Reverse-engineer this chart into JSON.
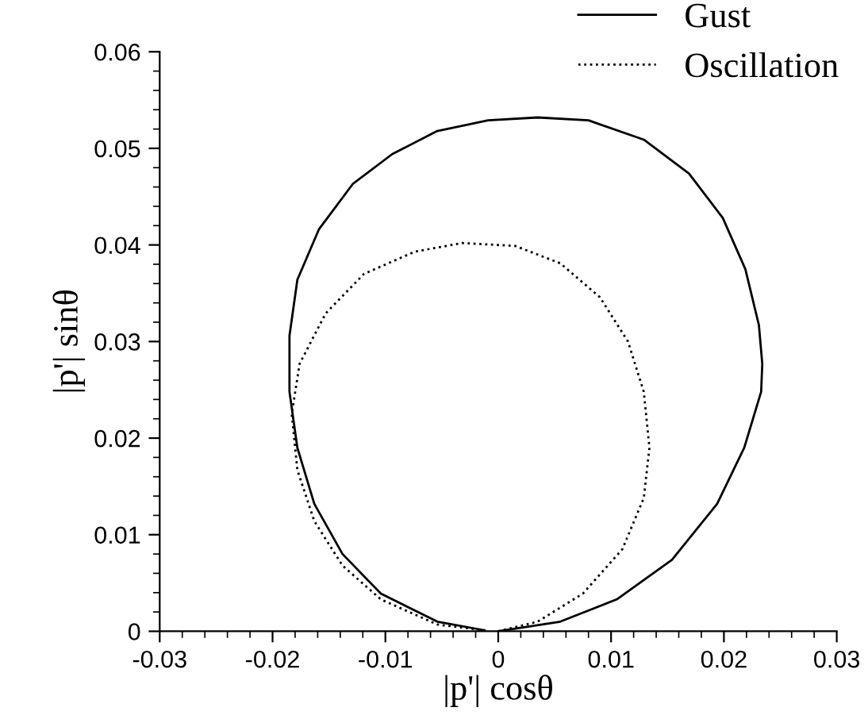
{
  "chart_data": {
    "type": "line",
    "xlabel": "|p'| cosθ",
    "ylabel": "|p'| sinθ",
    "xlim": [
      -0.03,
      0.03
    ],
    "ylim": [
      0,
      0.06
    ],
    "xticks": [
      -0.03,
      -0.02,
      -0.01,
      0,
      0.01,
      0.02,
      0.03
    ],
    "yticks": [
      0,
      0.01,
      0.02,
      0.03,
      0.04,
      0.05,
      0.06
    ],
    "grid": false,
    "legend": "top right",
    "marker": "none",
    "series": [
      {
        "name": "Gust",
        "color": "#000000",
        "line_style": "solid",
        "x": [
          0,
          0.0055,
          0.0105,
          0.0154,
          0.0194,
          0.0218,
          0.0233,
          0.0234,
          0.0231,
          0.0219,
          0.0199,
          0.0169,
          0.0129,
          0.008,
          0.0035,
          -0.0009,
          -0.0054,
          -0.0094,
          -0.0129,
          -0.0159,
          -0.0178,
          -0.0185,
          -0.0185,
          -0.0178,
          -0.0163,
          -0.0138,
          -0.0104,
          -0.0054,
          -0.0012
        ],
        "values": [
          0,
          0.001,
          0.0033,
          0.0074,
          0.0132,
          0.019,
          0.0248,
          0.0277,
          0.0317,
          0.0375,
          0.0428,
          0.0474,
          0.0509,
          0.0529,
          0.0532,
          0.0529,
          0.0518,
          0.0494,
          0.0463,
          0.0416,
          0.0364,
          0.0306,
          0.0248,
          0.019,
          0.0132,
          0.008,
          0.0039,
          0.001,
          0.0001
        ]
      },
      {
        "name": "Oscillation",
        "color": "#000000",
        "line_style": "dotted",
        "x": [
          0,
          0.0035,
          0.0075,
          0.011,
          0.0129,
          0.0134,
          0.0129,
          0.0115,
          0.009,
          0.0055,
          0.0015,
          -0.0032,
          -0.0074,
          -0.0119,
          -0.0153,
          -0.0176,
          -0.0183,
          -0.0178,
          -0.0163,
          -0.0138,
          -0.0104,
          -0.0054,
          -0.0012
        ],
        "values": [
          0,
          0.001,
          0.0039,
          0.0085,
          0.0138,
          0.019,
          0.0248,
          0.03,
          0.0346,
          0.0381,
          0.0399,
          0.0402,
          0.0393,
          0.037,
          0.0329,
          0.0277,
          0.0225,
          0.0167,
          0.0114,
          0.0068,
          0.0033,
          0.0007,
          0.0001
        ]
      }
    ]
  }
}
